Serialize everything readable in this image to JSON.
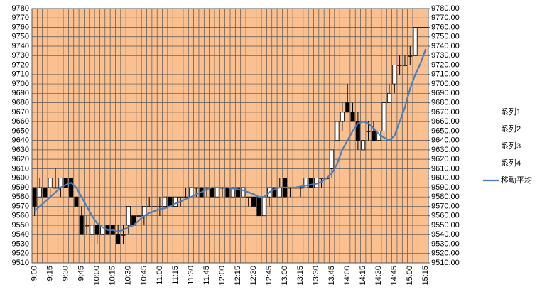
{
  "chart_data": {
    "type": "candlestick",
    "categories": [
      "9:00",
      null,
      null,
      "9:15",
      null,
      null,
      "9:30",
      null,
      null,
      "9:45",
      null,
      null,
      "10:00",
      null,
      null,
      "10:15",
      null,
      null,
      "10:30",
      null,
      null,
      "10:45",
      null,
      null,
      "11:00",
      null,
      null,
      "11:15",
      null,
      null,
      "11:30",
      null,
      null,
      "11:45",
      null,
      null,
      "12:00",
      null,
      null,
      "12:15",
      null,
      null,
      "12:30",
      null,
      null,
      "12:45",
      null,
      null,
      "13:00",
      null,
      null,
      "13:15",
      null,
      null,
      "13:30",
      null,
      null,
      "13:45",
      null,
      null,
      "14:00",
      null,
      null,
      "14:15",
      null,
      null,
      "14:30",
      null,
      null,
      "14:45",
      null,
      null,
      "15:00",
      null,
      null,
      "15:15"
    ],
    "series": [
      {
        "name": "系列1",
        "values": [
          9590,
          9580,
          9590,
          9590,
          9590,
          9590,
          9600,
          9600,
          9580,
          9560,
          9550,
          9540,
          9550,
          9540,
          9550,
          9550,
          9540,
          9540,
          9550,
          9560,
          9560,
          9560,
          9570,
          9570,
          9570,
          9570,
          9580,
          9570,
          9580,
          9580,
          9580,
          9590,
          9590,
          9590,
          9590,
          9580,
          9590,
          9590,
          9580,
          9590,
          9580,
          9580,
          9580,
          9580,
          9560,
          9580,
          9590,
          9580,
          9600,
          9590,
          9590,
          9590,
          9590,
          9600,
          9590,
          9600,
          9600,
          9610,
          9640,
          9660,
          9680,
          9670,
          9660,
          9630,
          9650,
          9650,
          9640,
          9650,
          9680,
          9700,
          9720,
          9720,
          9730,
          9730,
          9760,
          9760
        ]
      },
      {
        "name": "系列2",
        "values": [
          9590,
          9600,
          9590,
          9600,
          9610,
          9600,
          9600,
          9600,
          9580,
          9570,
          9560,
          9550,
          9550,
          9550,
          9550,
          9550,
          9550,
          9550,
          9570,
          9560,
          9560,
          9570,
          9580,
          9570,
          9580,
          9580,
          9580,
          9580,
          9580,
          9590,
          9590,
          9590,
          9590,
          9590,
          9590,
          9590,
          9590,
          9590,
          9590,
          9590,
          9590,
          9580,
          9580,
          9580,
          9580,
          9590,
          9590,
          9600,
          9600,
          9590,
          9590,
          9590,
          9600,
          9600,
          9600,
          9600,
          9600,
          9630,
          9670,
          9680,
          9700,
          9680,
          9670,
          9640,
          9660,
          9660,
          9650,
          9680,
          9700,
          9720,
          9730,
          9730,
          9740,
          9760,
          9760,
          9760
        ]
      },
      {
        "name": "系列3",
        "values": [
          9560,
          9580,
          9580,
          9580,
          9590,
          9580,
          9590,
          9580,
          9570,
          9540,
          9540,
          9530,
          9530,
          9540,
          9540,
          9540,
          9530,
          9530,
          9540,
          9550,
          9550,
          9550,
          9570,
          9570,
          9560,
          9570,
          9570,
          9570,
          9570,
          9580,
          9580,
          9580,
          9580,
          9580,
          9580,
          9580,
          9580,
          9580,
          9580,
          9580,
          9580,
          9570,
          9570,
          9560,
          9560,
          9570,
          9580,
          9580,
          9580,
          9580,
          9590,
          9580,
          9590,
          9590,
          9590,
          9590,
          9600,
          9600,
          9640,
          9650,
          9670,
          9660,
          9630,
          9630,
          9640,
          9640,
          9640,
          9650,
          9680,
          9690,
          9710,
          9720,
          9720,
          9730,
          9760,
          9760
        ]
      },
      {
        "name": "系列4",
        "values": [
          9570,
          9590,
          9580,
          9600,
          9590,
          9600,
          9590,
          9580,
          9570,
          9540,
          9550,
          9550,
          9540,
          9550,
          9540,
          9540,
          9530,
          9540,
          9570,
          9550,
          9560,
          9570,
          9570,
          9570,
          9570,
          9580,
          9570,
          9580,
          9580,
          9580,
          9590,
          9590,
          9580,
          9590,
          9580,
          9590,
          9590,
          9580,
          9590,
          9580,
          9590,
          9580,
          9570,
          9560,
          9580,
          9590,
          9580,
          9590,
          9580,
          9590,
          9590,
          9590,
          9600,
          9590,
          9600,
          9600,
          9600,
          9630,
          9660,
          9670,
          9670,
          9660,
          9640,
          9640,
          9650,
          9640,
          9650,
          9680,
          9690,
          9720,
          9720,
          9720,
          9730,
          9760,
          9760,
          9760
        ]
      },
      {
        "name": "移動平均",
        "color": "#4a7ebb",
        "values": [
          9565,
          9570,
          9575,
          9580,
          9585,
          9590,
          9593,
          9595,
          9590,
          9580,
          9570,
          9560,
          9552,
          9548,
          9545,
          9545,
          9543,
          9545,
          9548,
          9550,
          9555,
          9560,
          9563,
          9565,
          9567,
          9568,
          9570,
          9573,
          9575,
          9578,
          9580,
          9583,
          9585,
          9588,
          9590,
          9590,
          9590,
          9590,
          9589,
          9588,
          9587,
          9585,
          9583,
          9580,
          9580,
          9585,
          9588,
          9590,
          9590,
          9590,
          9590,
          9591,
          9592,
          9593,
          9594,
          9596,
          9600,
          9605,
          9615,
          9630,
          9640,
          9650,
          9658,
          9660,
          9658,
          9653,
          9647,
          9643,
          9640,
          9645,
          9660,
          9675,
          9695,
          9710,
          9722,
          9737
        ]
      }
    ],
    "up_color": "#ffffff",
    "down_color": "#000000",
    "plot_color": "#fac090",
    "ylim": [
      9510,
      9780
    ],
    "yticks": [
      9510,
      9520,
      9530,
      9540,
      9550,
      9560,
      9570,
      9580,
      9590,
      9600,
      9610,
      9620,
      9630,
      9640,
      9650,
      9660,
      9670,
      9680,
      9690,
      9700,
      9710,
      9720,
      9730,
      9740,
      9750,
      9760,
      9770,
      9780
    ],
    "y2lim": [
      9510,
      9780
    ],
    "y2ticks": [
      {
        "value": 9510,
        "label": "9510.00"
      },
      {
        "value": 9520,
        "label": "9520.00"
      },
      {
        "value": 9530,
        "label": "9530.00"
      },
      {
        "value": 9540,
        "label": "9540.00"
      },
      {
        "value": 9550,
        "label": "9550.00"
      },
      {
        "value": 9560,
        "label": "9560.00"
      },
      {
        "value": 9570,
        "label": "9570.00"
      },
      {
        "value": 9580,
        "label": "9580.00"
      },
      {
        "value": 9590,
        "label": "9590.00"
      },
      {
        "value": 9600,
        "label": "9600.00"
      },
      {
        "value": 9610,
        "label": "9610.00"
      },
      {
        "value": 9620,
        "label": "9620.00"
      },
      {
        "value": 9630,
        "label": "9630.00"
      },
      {
        "value": 9640,
        "label": "9640.00"
      },
      {
        "value": 9650,
        "label": "9650.00"
      },
      {
        "value": 9660,
        "label": "9660.00"
      },
      {
        "value": 9670,
        "label": "9670.00"
      },
      {
        "value": 9680,
        "label": "9680.00"
      },
      {
        "value": 9690,
        "label": "9690.00"
      },
      {
        "value": 9700,
        "label": "9700.00"
      },
      {
        "value": 9710,
        "label": "9710.00"
      },
      {
        "value": 9720,
        "label": "9720.00"
      },
      {
        "value": 9730,
        "label": "9730.00"
      },
      {
        "value": 9740,
        "label": "9740.00"
      },
      {
        "value": 9750,
        "label": "9750.00"
      },
      {
        "value": 9760,
        "label": "9760.00"
      },
      {
        "value": 9770,
        "label": "9770.00"
      },
      {
        "value": 9780,
        "label": "9780.00"
      }
    ],
    "grid": true,
    "legend": "right"
  }
}
